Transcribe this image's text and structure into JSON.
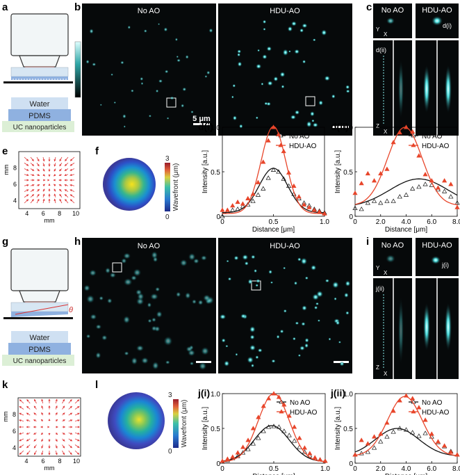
{
  "panels": {
    "a": "a",
    "b": "b",
    "c": "c",
    "e": "e",
    "f": "f",
    "g": "g",
    "h": "h",
    "i": "i",
    "k": "k",
    "l": "l"
  },
  "schematic": {
    "water": "Water",
    "pdms": "PDMS",
    "uc": "UC nanoparticles",
    "theta": "θ"
  },
  "colorbar": {
    "max": "1",
    "min": "0"
  },
  "images": {
    "b": {
      "left": "No AO",
      "right": "HDU-AO",
      "scale": "5 μm"
    },
    "h": {
      "left": "No AO",
      "right": "HDU-AO"
    }
  },
  "zoom": {
    "axis_x": "X",
    "axis_y": "Y",
    "axis_z": "Z",
    "c": {
      "left": "No AO",
      "right": "HDU-AO",
      "xy_label": "d(i)",
      "xz_label": "d(ii)"
    },
    "i": {
      "left": "No AO",
      "right": "HDU-AO",
      "xy_label": "j(i)",
      "xz_label": "j(ii)"
    }
  },
  "wavefront": {
    "label": "Wavefront (μm)",
    "max": "3",
    "min": "0"
  },
  "chart_data": [
    {
      "id": "e",
      "type": "quiver",
      "xlabel": "mm",
      "ylabel": "mm",
      "xticks": [
        "4",
        "6",
        "8",
        "10"
      ],
      "yticks": [
        "4",
        "6",
        "8"
      ],
      "xlim": [
        3,
        10.5
      ],
      "ylim": [
        3,
        10
      ],
      "color": "#e03a3a",
      "pattern": "converging"
    },
    {
      "id": "k",
      "type": "quiver",
      "xlabel": "mm",
      "ylabel": "mm",
      "xticks": [
        "4",
        "6",
        "8",
        "10"
      ],
      "yticks": [
        "4",
        "6",
        "8"
      ],
      "xlim": [
        3,
        10.5
      ],
      "ylim": [
        3,
        10
      ],
      "color": "#e03a3a",
      "pattern": "diverging"
    },
    {
      "id": "d(i)",
      "type": "line",
      "title": "d(i)",
      "xlabel": "Distance [μm]",
      "ylabel": "Intensity [a.u.]",
      "xlim": [
        0,
        1.0
      ],
      "ylim": [
        0,
        1.0
      ],
      "xticks": [
        "0",
        "0.5",
        "1.0"
      ],
      "yticks": [
        "0",
        "0.5",
        "1.0"
      ],
      "legend": "top-right",
      "series": [
        {
          "name": "No AO",
          "color": "#111111",
          "marker": "triangle-open",
          "fit": {
            "center": 0.5,
            "sigma": 0.14,
            "amp": 0.5,
            "base": 0.04
          },
          "x": [
            0.0,
            0.05,
            0.1,
            0.15,
            0.2,
            0.25,
            0.3,
            0.35,
            0.4,
            0.45,
            0.5,
            0.55,
            0.6,
            0.65,
            0.7,
            0.75,
            0.8,
            0.85,
            0.9,
            0.95,
            1.0
          ],
          "values": [
            0.0,
            0.05,
            0.07,
            0.08,
            0.11,
            0.13,
            0.17,
            0.24,
            0.31,
            0.43,
            0.52,
            0.5,
            0.42,
            0.34,
            0.25,
            0.2,
            0.15,
            0.12,
            0.08,
            0.06,
            0.04
          ]
        },
        {
          "name": "HDU-AO",
          "color": "#e8452a",
          "marker": "triangle-filled",
          "fit": {
            "center": 0.5,
            "sigma": 0.12,
            "amp": 0.98,
            "base": 0.03
          },
          "x": [
            0.0,
            0.05,
            0.1,
            0.15,
            0.2,
            0.25,
            0.3,
            0.35,
            0.4,
            0.45,
            0.5,
            0.55,
            0.6,
            0.65,
            0.7,
            0.75,
            0.8,
            0.85,
            0.9,
            0.95,
            1.0
          ],
          "values": [
            0.07,
            0.07,
            0.12,
            0.16,
            0.14,
            0.2,
            0.25,
            0.38,
            0.61,
            0.85,
            1.0,
            0.92,
            0.73,
            0.49,
            0.34,
            0.22,
            0.13,
            0.1,
            0.07,
            0.05,
            0.03
          ]
        }
      ]
    },
    {
      "id": "d(ii)",
      "type": "line",
      "title": "d(ii)",
      "xlabel": "Distance [μm]",
      "ylabel": "Intensity [a.u.]",
      "xlim": [
        0,
        8.0
      ],
      "ylim": [
        0,
        1.0
      ],
      "xticks": [
        "0",
        "2.0",
        "4.0",
        "6.0",
        "8.0"
      ],
      "yticks": [
        "0",
        "0.5",
        "1.0"
      ],
      "legend": "top-right",
      "series": [
        {
          "name": "No AO",
          "color": "#111111",
          "marker": "triangle-open",
          "fit": {
            "center": 5.0,
            "sigma": 2.3,
            "amp": 0.32,
            "base": 0.1
          },
          "x": [
            0.0,
            0.5,
            1.0,
            1.5,
            2.0,
            2.5,
            3.0,
            3.5,
            4.0,
            4.5,
            5.0,
            5.5,
            6.0,
            6.5,
            7.0,
            7.5,
            8.0
          ],
          "values": [
            0.09,
            0.08,
            0.15,
            0.17,
            0.15,
            0.17,
            0.17,
            0.22,
            0.24,
            0.31,
            0.33,
            0.36,
            0.35,
            0.3,
            0.28,
            0.22,
            0.15
          ]
        },
        {
          "name": "HDU-AO",
          "color": "#e8452a",
          "marker": "triangle-filled",
          "fit": {
            "center": 3.9,
            "sigma": 1.35,
            "amp": 0.88,
            "base": 0.12
          },
          "x": [
            0.0,
            0.5,
            1.0,
            1.5,
            2.0,
            2.5,
            3.0,
            3.5,
            4.0,
            4.5,
            5.0,
            5.5,
            6.0,
            6.5,
            7.0,
            7.5,
            8.0
          ],
          "values": [
            0.26,
            0.37,
            0.48,
            0.4,
            0.48,
            0.53,
            0.83,
            0.94,
            1.0,
            0.95,
            0.68,
            0.47,
            0.4,
            0.32,
            0.4,
            0.36,
            0.1
          ]
        }
      ]
    },
    {
      "id": "j(i)",
      "type": "line",
      "title": "j(i)",
      "xlabel": "Distance [μm]",
      "ylabel": "Intensity [a.u.]",
      "xlim": [
        0,
        1.0
      ],
      "ylim": [
        0,
        1.0
      ],
      "xticks": [
        "0",
        "0.5",
        "1.0"
      ],
      "yticks": [
        "0",
        "0.5",
        "1.0"
      ],
      "legend": "top-right",
      "series": [
        {
          "name": "No AO",
          "color": "#111111",
          "marker": "triangle-open",
          "fit": {
            "center": 0.48,
            "sigma": 0.17,
            "amp": 0.52,
            "base": 0.02
          },
          "x": [
            0.0,
            0.05,
            0.1,
            0.15,
            0.2,
            0.25,
            0.3,
            0.35,
            0.4,
            0.45,
            0.5,
            0.55,
            0.6,
            0.65,
            0.7,
            0.75,
            0.8,
            0.85,
            0.9,
            0.95,
            1.0
          ],
          "values": [
            0.02,
            0.04,
            0.07,
            0.1,
            0.15,
            0.2,
            0.28,
            0.36,
            0.46,
            0.52,
            0.53,
            0.52,
            0.46,
            0.4,
            0.32,
            0.23,
            0.16,
            0.11,
            0.07,
            0.05,
            0.03
          ]
        },
        {
          "name": "HDU-AO",
          "color": "#e8452a",
          "marker": "triangle-filled",
          "fit": {
            "center": 0.5,
            "sigma": 0.15,
            "amp": 0.98,
            "base": 0.02
          },
          "x": [
            0.0,
            0.05,
            0.1,
            0.15,
            0.2,
            0.25,
            0.3,
            0.35,
            0.4,
            0.45,
            0.5,
            0.55,
            0.6,
            0.65,
            0.7,
            0.75,
            0.8,
            0.85,
            0.9,
            0.95,
            1.0
          ],
          "values": [
            0.03,
            0.06,
            0.09,
            0.15,
            0.23,
            0.33,
            0.5,
            0.66,
            0.82,
            0.93,
            1.0,
            0.95,
            0.84,
            0.68,
            0.52,
            0.36,
            0.22,
            0.14,
            0.08,
            0.05,
            0.03
          ]
        }
      ]
    },
    {
      "id": "j(ii)",
      "type": "line",
      "title": "j(ii)",
      "xlabel": "Distance [μm]",
      "ylabel": "Intensity [a.u.]",
      "xlim": [
        0,
        8.0
      ],
      "ylim": [
        0,
        1.0
      ],
      "xticks": [
        "0",
        "2.0",
        "4.0",
        "6.0",
        "8.0"
      ],
      "yticks": [
        "0",
        "0.5",
        "1.0"
      ],
      "legend": "top-right",
      "series": [
        {
          "name": "No AO",
          "color": "#111111",
          "marker": "triangle-open",
          "fit": {
            "center": 3.3,
            "sigma": 1.7,
            "amp": 0.4,
            "base": 0.1
          },
          "x": [
            0.0,
            0.5,
            1.0,
            1.5,
            2.0,
            2.5,
            3.0,
            3.5,
            4.0,
            4.5,
            5.0,
            5.5,
            6.0,
            6.5,
            7.0,
            7.5,
            8.0
          ],
          "values": [
            0.12,
            0.14,
            0.16,
            0.22,
            0.31,
            0.38,
            0.45,
            0.5,
            0.48,
            0.44,
            0.39,
            0.43,
            0.38,
            0.3,
            0.24,
            0.17,
            0.12
          ]
        },
        {
          "name": "HDU-AO",
          "color": "#e8452a",
          "marker": "triangle-filled",
          "fit": {
            "center": 3.9,
            "sigma": 1.35,
            "amp": 0.86,
            "base": 0.1
          },
          "x": [
            0.0,
            0.5,
            1.0,
            1.5,
            2.0,
            2.5,
            3.0,
            3.5,
            4.0,
            4.5,
            5.0,
            5.5,
            6.0,
            6.5,
            7.0,
            7.5,
            8.0
          ],
          "values": [
            0.12,
            0.33,
            0.28,
            0.38,
            0.42,
            0.58,
            0.75,
            0.9,
            0.97,
            0.93,
            0.8,
            0.62,
            0.42,
            0.31,
            0.25,
            0.16,
            0.12
          ]
        }
      ]
    }
  ]
}
